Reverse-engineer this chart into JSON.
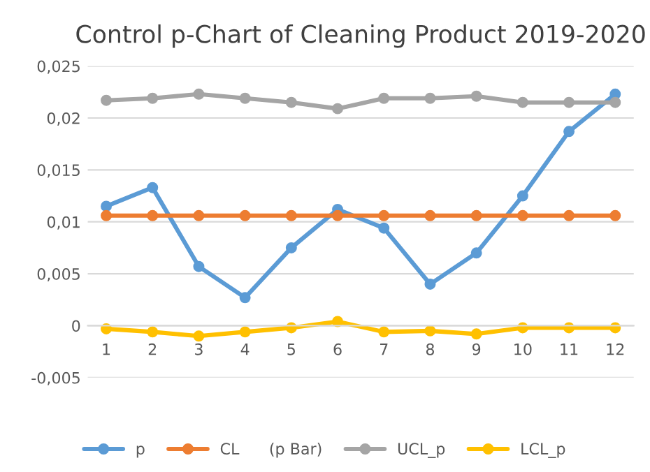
{
  "chart_data": {
    "type": "line",
    "title": "Control p-Chart of Cleaning Product 2019-2020",
    "categories": [
      "1",
      "2",
      "3",
      "4",
      "5",
      "6",
      "7",
      "8",
      "9",
      "10",
      "11",
      "12"
    ],
    "series": [
      {
        "name": "p",
        "color": "#5b9bd5",
        "values": [
          0.0115,
          0.0133,
          0.0057,
          0.0027,
          0.0075,
          0.0112,
          0.0094,
          0.004,
          0.007,
          0.0125,
          0.0187,
          0.0223
        ]
      },
      {
        "name": "CL      (p Bar)",
        "color": "#ed7d31",
        "values": [
          0.0106,
          0.0106,
          0.0106,
          0.0106,
          0.0106,
          0.0106,
          0.0106,
          0.0106,
          0.0106,
          0.0106,
          0.0106,
          0.0106
        ]
      },
      {
        "name": "UCL_p",
        "color": "#a5a5a5",
        "values": [
          0.0217,
          0.0219,
          0.0223,
          0.0219,
          0.0215,
          0.0209,
          0.0219,
          0.0219,
          0.0221,
          0.0215,
          0.0215,
          0.0215
        ]
      },
      {
        "name": "LCL_p",
        "color": "#ffc000",
        "values": [
          -0.0003,
          -0.0006,
          -0.001,
          -0.0006,
          -0.0002,
          0.0004,
          -0.0006,
          -0.0005,
          -0.0008,
          -0.0002,
          -0.0002,
          -0.0002
        ]
      }
    ],
    "ylim": [
      -0.005,
      0.025
    ],
    "yticks": [
      {
        "value": -0.005,
        "label": "-0,005"
      },
      {
        "value": 0,
        "label": "0"
      },
      {
        "value": 0.005,
        "label": "0,005"
      },
      {
        "value": 0.01,
        "label": "0,01"
      },
      {
        "value": 0.015,
        "label": "0,015"
      },
      {
        "value": 0.02,
        "label": "0,02"
      },
      {
        "value": 0.025,
        "label": "0,025"
      }
    ],
    "grid": "y",
    "legend": "bottom",
    "marker": "circle",
    "line_style": "solid"
  }
}
